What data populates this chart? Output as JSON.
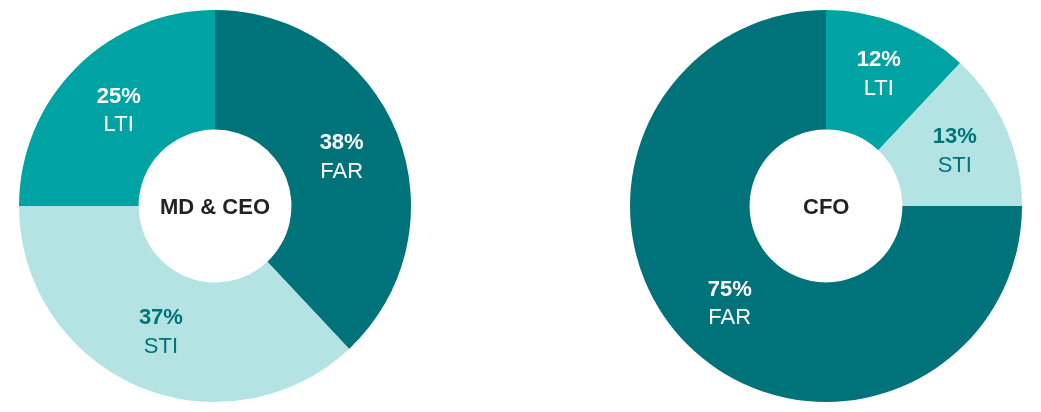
{
  "chart_data": [
    {
      "type": "donut",
      "title": "MD & CEO",
      "categories": [
        "FAR",
        "STI",
        "LTI"
      ],
      "values": [
        38,
        37,
        25
      ],
      "value_labels": [
        "38%",
        "37%",
        "25%"
      ],
      "colors": [
        "#00737a",
        "#b3e3e3",
        "#00a3a3"
      ],
      "legend": false
    },
    {
      "type": "donut",
      "title": "CFO",
      "categories": [
        "LTI",
        "STI",
        "FAR"
      ],
      "values": [
        12,
        13,
        75
      ],
      "value_labels": [
        "12%",
        "13%",
        "75%"
      ],
      "colors": [
        "#00a3a3",
        "#b3e3e3",
        "#00737a"
      ],
      "legend": false
    }
  ]
}
